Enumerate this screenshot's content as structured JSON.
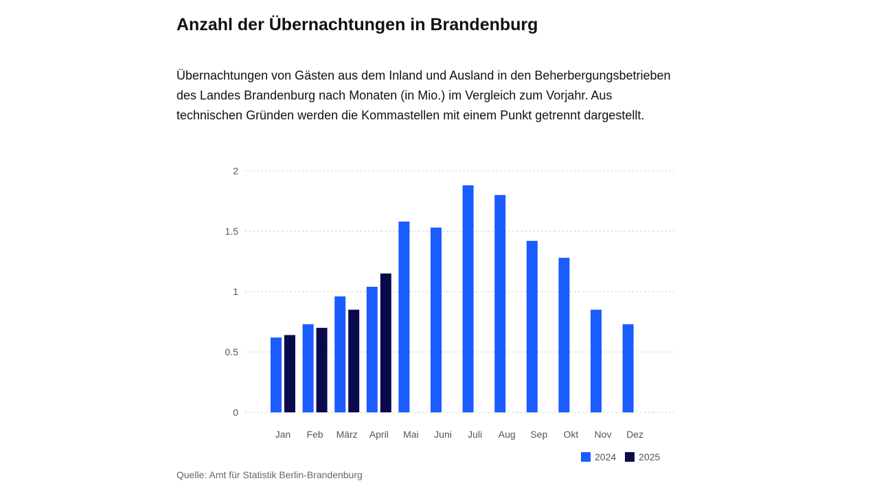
{
  "title": "Anzahl der Übernachtungen in Brandenburg",
  "subtitle": "Übernachtungen von Gästen aus dem Inland und Ausland in den Beherbergungsbetrieben des Landes Brandenburg nach Monaten (in Mio.) im Vergleich zum Vorjahr. Aus technischen Gründen werden die Kommastellen mit einem Punkt getrennt dargestellt.",
  "source": "Quelle: Amt für Statistik Berlin-Brandenburg",
  "colors": {
    "series_2024": "#1a5cff",
    "series_2025": "#0a0a4a",
    "grid": "#cfcfcf"
  },
  "chart_data": {
    "type": "bar",
    "categories": [
      "Jan",
      "Feb",
      "März",
      "April",
      "Mai",
      "Juni",
      "Juli",
      "Aug",
      "Sep",
      "Okt",
      "Nov",
      "Dez"
    ],
    "series": [
      {
        "name": "2024",
        "values": [
          0.62,
          0.73,
          0.96,
          1.04,
          1.58,
          1.53,
          1.88,
          1.8,
          1.42,
          1.28,
          0.85,
          0.73
        ]
      },
      {
        "name": "2025",
        "values": [
          0.64,
          0.7,
          0.85,
          1.15,
          null,
          null,
          null,
          null,
          null,
          null,
          null,
          null
        ]
      }
    ],
    "yticks": [
      "0",
      "0.5",
      "1",
      "1.5",
      "2"
    ],
    "ylim": [
      0,
      2
    ],
    "grid": true,
    "legend": "bottom-right",
    "xlabel": "",
    "ylabel": ""
  }
}
